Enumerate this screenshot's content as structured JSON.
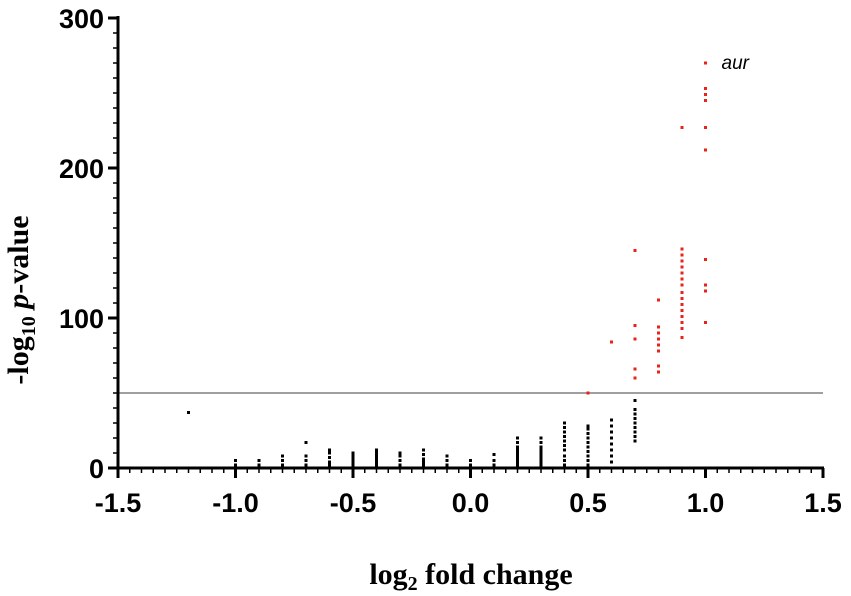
{
  "chart_data": {
    "type": "scatter",
    "title": "",
    "xlabel_parts": [
      "log",
      "2",
      " fold change"
    ],
    "ylabel_parts": [
      "-log",
      "10",
      " ",
      "p",
      "-value"
    ],
    "xlim": [
      -1.5,
      1.5
    ],
    "ylim": [
      0,
      300
    ],
    "x_ticks": [
      -1.5,
      -1.0,
      -0.5,
      0.0,
      0.5,
      1.0,
      1.5
    ],
    "x_tick_labels": [
      "-1.5",
      "-1.0",
      "-0.5",
      "0.0",
      "0.5",
      "1.0",
      "1.5"
    ],
    "y_ticks": [
      0,
      100,
      200,
      300
    ],
    "y_tick_labels": [
      "0",
      "100",
      "200",
      "300"
    ],
    "threshold_y": 50,
    "grid": false,
    "colors": {
      "significant": "#e8231a",
      "not_significant": "#000000",
      "threshold": "#666666"
    },
    "annotation": {
      "text": "aur",
      "x": 1.0,
      "y": 270
    },
    "series": [
      {
        "color": "#e8231a",
        "points": [
          [
            0.5,
            50
          ],
          [
            0.6,
            84
          ],
          [
            0.7,
            60
          ],
          [
            0.7,
            66
          ],
          [
            0.7,
            86
          ],
          [
            0.7,
            95
          ],
          [
            0.7,
            145
          ],
          [
            0.8,
            64
          ],
          [
            0.8,
            68
          ],
          [
            0.8,
            78
          ],
          [
            0.8,
            82
          ],
          [
            0.8,
            86
          ],
          [
            0.8,
            90
          ],
          [
            0.8,
            94
          ],
          [
            0.8,
            112
          ],
          [
            0.9,
            87
          ],
          [
            0.9,
            93
          ],
          [
            0.9,
            97
          ],
          [
            0.9,
            101
          ],
          [
            0.9,
            105
          ],
          [
            0.9,
            109
          ],
          [
            0.9,
            113
          ],
          [
            0.9,
            117
          ],
          [
            0.9,
            122
          ],
          [
            0.9,
            126
          ],
          [
            0.9,
            130
          ],
          [
            0.9,
            134
          ],
          [
            0.9,
            138
          ],
          [
            0.9,
            142
          ],
          [
            0.9,
            146
          ],
          [
            0.9,
            227
          ],
          [
            1.0,
            97
          ],
          [
            1.0,
            118
          ],
          [
            1.0,
            122
          ],
          [
            1.0,
            139
          ],
          [
            1.0,
            212
          ],
          [
            1.0,
            227
          ],
          [
            1.0,
            245
          ],
          [
            1.0,
            249
          ],
          [
            1.0,
            253
          ],
          [
            1.0,
            270
          ]
        ]
      },
      {
        "color": "#000000",
        "points": [
          [
            -1.2,
            37
          ],
          [
            -1.0,
            2
          ],
          [
            -1.0,
            5
          ],
          [
            -0.9,
            2
          ],
          [
            -0.9,
            5
          ],
          [
            -0.8,
            2
          ],
          [
            -0.8,
            5
          ],
          [
            -0.8,
            8
          ],
          [
            -0.7,
            2
          ],
          [
            -0.7,
            5
          ],
          [
            -0.7,
            8
          ],
          [
            -0.7,
            17
          ],
          [
            -0.6,
            2
          ],
          [
            -0.6,
            4
          ],
          [
            -0.6,
            7
          ],
          [
            -0.6,
            10
          ],
          [
            -0.6,
            12
          ],
          [
            -0.5,
            2
          ],
          [
            -0.5,
            4
          ],
          [
            -0.5,
            6
          ],
          [
            -0.5,
            8
          ],
          [
            -0.5,
            10
          ],
          [
            -0.4,
            2
          ],
          [
            -0.4,
            4
          ],
          [
            -0.4,
            6
          ],
          [
            -0.4,
            8
          ],
          [
            -0.4,
            10
          ],
          [
            -0.4,
            12
          ],
          [
            -0.3,
            2
          ],
          [
            -0.3,
            5
          ],
          [
            -0.3,
            8
          ],
          [
            -0.3,
            10
          ],
          [
            -0.2,
            2
          ],
          [
            -0.2,
            4
          ],
          [
            -0.2,
            6
          ],
          [
            -0.2,
            9
          ],
          [
            -0.2,
            12
          ],
          [
            -0.1,
            2
          ],
          [
            -0.1,
            5
          ],
          [
            -0.1,
            8
          ],
          [
            0.0,
            2
          ],
          [
            0.0,
            5
          ],
          [
            0.1,
            2
          ],
          [
            0.1,
            5
          ],
          [
            0.1,
            9
          ],
          [
            0.2,
            2
          ],
          [
            0.2,
            4
          ],
          [
            0.2,
            6
          ],
          [
            0.2,
            8
          ],
          [
            0.2,
            10
          ],
          [
            0.2,
            12
          ],
          [
            0.2,
            14
          ],
          [
            0.2,
            17
          ],
          [
            0.2,
            20
          ],
          [
            0.3,
            2
          ],
          [
            0.3,
            4
          ],
          [
            0.3,
            6
          ],
          [
            0.3,
            8
          ],
          [
            0.3,
            10
          ],
          [
            0.3,
            12
          ],
          [
            0.3,
            14
          ],
          [
            0.3,
            17
          ],
          [
            0.3,
            20
          ],
          [
            0.4,
            2
          ],
          [
            0.4,
            5
          ],
          [
            0.4,
            8
          ],
          [
            0.4,
            12
          ],
          [
            0.4,
            15
          ],
          [
            0.4,
            18
          ],
          [
            0.4,
            21
          ],
          [
            0.4,
            24
          ],
          [
            0.4,
            27
          ],
          [
            0.4,
            30
          ],
          [
            0.5,
            2
          ],
          [
            0.5,
            5
          ],
          [
            0.5,
            8
          ],
          [
            0.5,
            11
          ],
          [
            0.5,
            14
          ],
          [
            0.5,
            17
          ],
          [
            0.5,
            20
          ],
          [
            0.5,
            23
          ],
          [
            0.5,
            26
          ],
          [
            0.5,
            28
          ],
          [
            0.6,
            4
          ],
          [
            0.6,
            8
          ],
          [
            0.6,
            12
          ],
          [
            0.6,
            16
          ],
          [
            0.6,
            20
          ],
          [
            0.6,
            24
          ],
          [
            0.6,
            28
          ],
          [
            0.6,
            32
          ],
          [
            0.7,
            18
          ],
          [
            0.7,
            21
          ],
          [
            0.7,
            24
          ],
          [
            0.7,
            27
          ],
          [
            0.7,
            30
          ],
          [
            0.7,
            33
          ],
          [
            0.7,
            36
          ],
          [
            0.7,
            39
          ],
          [
            0.7,
            45
          ]
        ]
      }
    ]
  }
}
